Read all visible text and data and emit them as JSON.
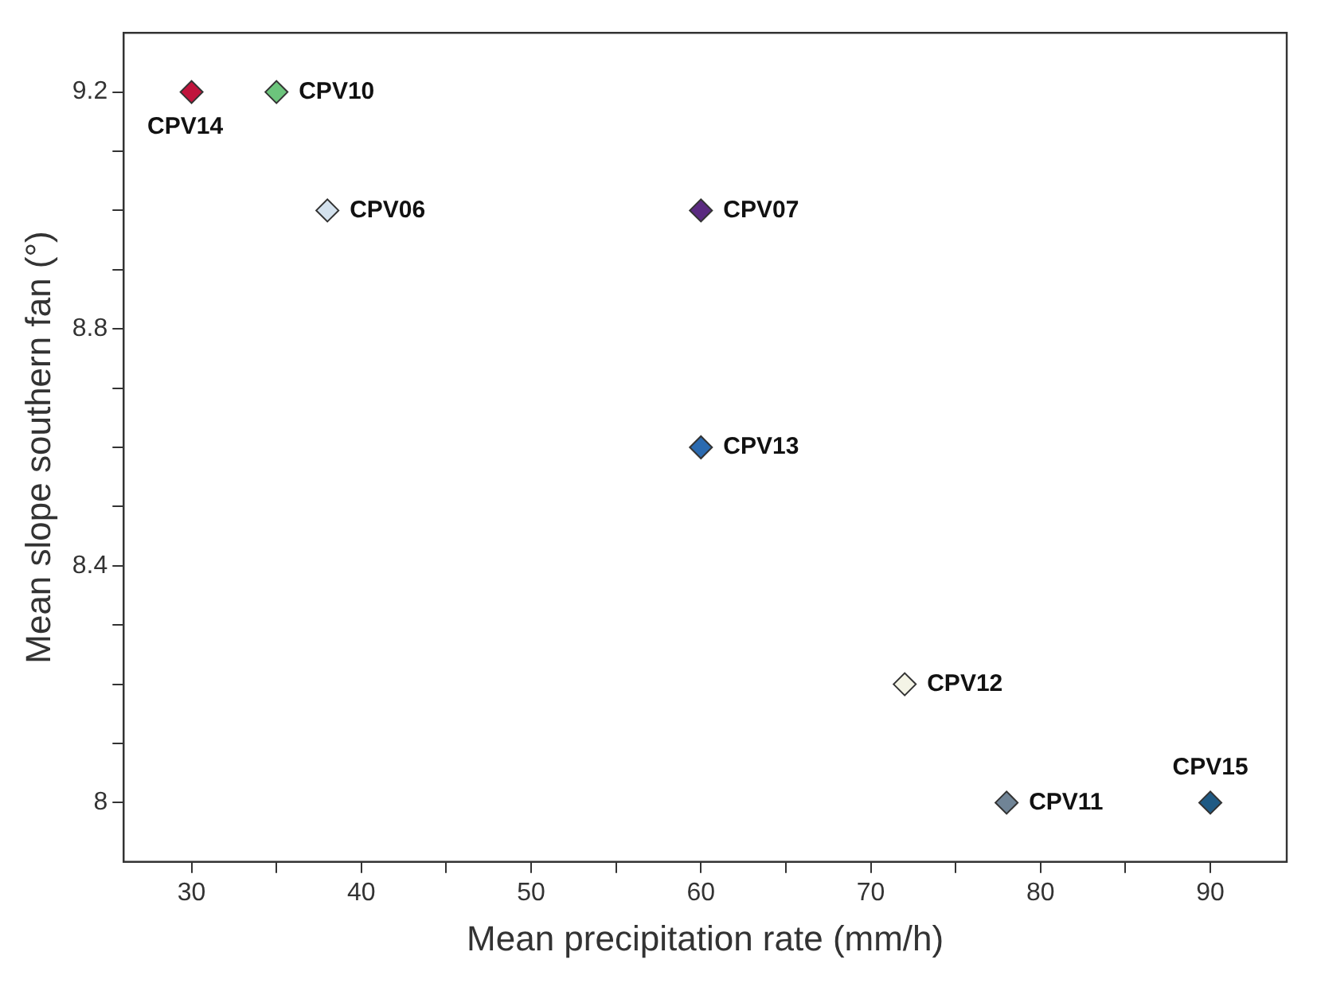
{
  "chart_data": {
    "type": "scatter",
    "xlabel": "Mean precipitation rate (mm/h)",
    "ylabel": "Mean slope southern fan (°)",
    "xlim": [
      26,
      94.5
    ],
    "ylim": [
      7.9,
      9.3
    ],
    "xticks": [
      30,
      {
        "value": 35,
        "label": null
      },
      40,
      {
        "value": 45,
        "label": null
      },
      50,
      {
        "value": 55,
        "label": null
      },
      60,
      {
        "value": 65,
        "label": null
      },
      70,
      {
        "value": 75,
        "label": null
      },
      80,
      {
        "value": 85,
        "label": null
      },
      90
    ],
    "yticks": [
      8,
      {
        "value": 8.1,
        "label": null
      },
      {
        "value": 8.2,
        "label": null
      },
      {
        "value": 8.3,
        "label": null
      },
      8.4,
      {
        "value": 8.5,
        "label": null
      },
      {
        "value": 8.6,
        "label": null
      },
      {
        "value": 8.7,
        "label": null
      },
      8.8,
      {
        "value": 8.9,
        "label": null
      },
      {
        "value": 9.0,
        "label": null
      },
      {
        "value": 9.1,
        "label": null
      },
      9.2
    ],
    "marker": "diamond",
    "grid": false,
    "legend": false,
    "series": [
      {
        "name": "CPV14",
        "color": "#c0143c",
        "x": [
          30
        ],
        "values": [
          9.2
        ]
      },
      {
        "name": "CPV10",
        "color": "#6cc47c",
        "x": [
          35
        ],
        "values": [
          9.2
        ]
      },
      {
        "name": "CPV06",
        "color": "#d4e2ee",
        "x": [
          38
        ],
        "values": [
          9.0
        ]
      },
      {
        "name": "CPV07",
        "color": "#5a2a80",
        "x": [
          60
        ],
        "values": [
          9.0
        ]
      },
      {
        "name": "CPV13",
        "color": "#2a6ab0",
        "x": [
          60
        ],
        "values": [
          8.6
        ]
      },
      {
        "name": "CPV12",
        "color": "#f4f4e6",
        "x": [
          72
        ],
        "values": [
          8.2
        ]
      },
      {
        "name": "CPV11",
        "color": "#708496",
        "x": [
          78
        ],
        "values": [
          8.0
        ]
      },
      {
        "name": "CPV15",
        "color": "#1f5a84",
        "x": [
          90
        ],
        "values": [
          8.0
        ]
      }
    ]
  }
}
